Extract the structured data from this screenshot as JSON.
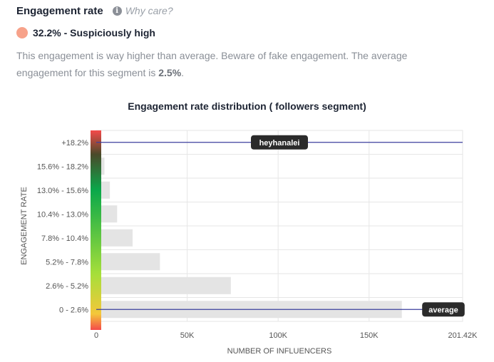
{
  "header": {
    "title": "Engagement rate",
    "why_label": "Why care?",
    "info_icon": "info-icon"
  },
  "status": {
    "dot_color": "#f7a28a",
    "label": "32.2% - Suspiciously high"
  },
  "description": {
    "text": "This engagement is way higher than average. Beware of fake engagement. The average engagement for this segment is ",
    "value": "2.5%",
    "suffix": "."
  },
  "chart_data": {
    "type": "bar",
    "orientation": "horizontal",
    "title": "Engagement rate distribution ( followers segment)",
    "xlabel": "NUMBER OF INFLUENCERS",
    "ylabel": "ENGAGEMENT RATE",
    "categories": [
      "+18.2%",
      "15.6% - 18.2%",
      "13.0% - 15.6%",
      "10.4% - 13.0%",
      "7.8% - 10.4%",
      "5.2% - 7.8%",
      "2.6% - 5.2%",
      "0 - 2.6%"
    ],
    "values": [
      0,
      4500,
      7500,
      11500,
      20000,
      35000,
      74000,
      168000
    ],
    "xlim": [
      0,
      201420
    ],
    "x_ticks": [
      0,
      50000,
      100000,
      150000,
      201420
    ],
    "x_tick_labels": [
      "0",
      "50K",
      "100K",
      "150K",
      "201.42K"
    ],
    "grid": true,
    "bar_color": "#e4e4e4",
    "markers": [
      {
        "label": "heyhanalei",
        "category": "+18.2%",
        "color": "#3b3f9e"
      },
      {
        "label": "average",
        "category": "0 - 2.6%",
        "color": "#3b3f9e"
      }
    ],
    "color_scale": [
      "#f44a4a",
      "#4a4a2a",
      "#0aa84a",
      "#a6df3a",
      "#f4c73a",
      "#f44a4a"
    ]
  }
}
